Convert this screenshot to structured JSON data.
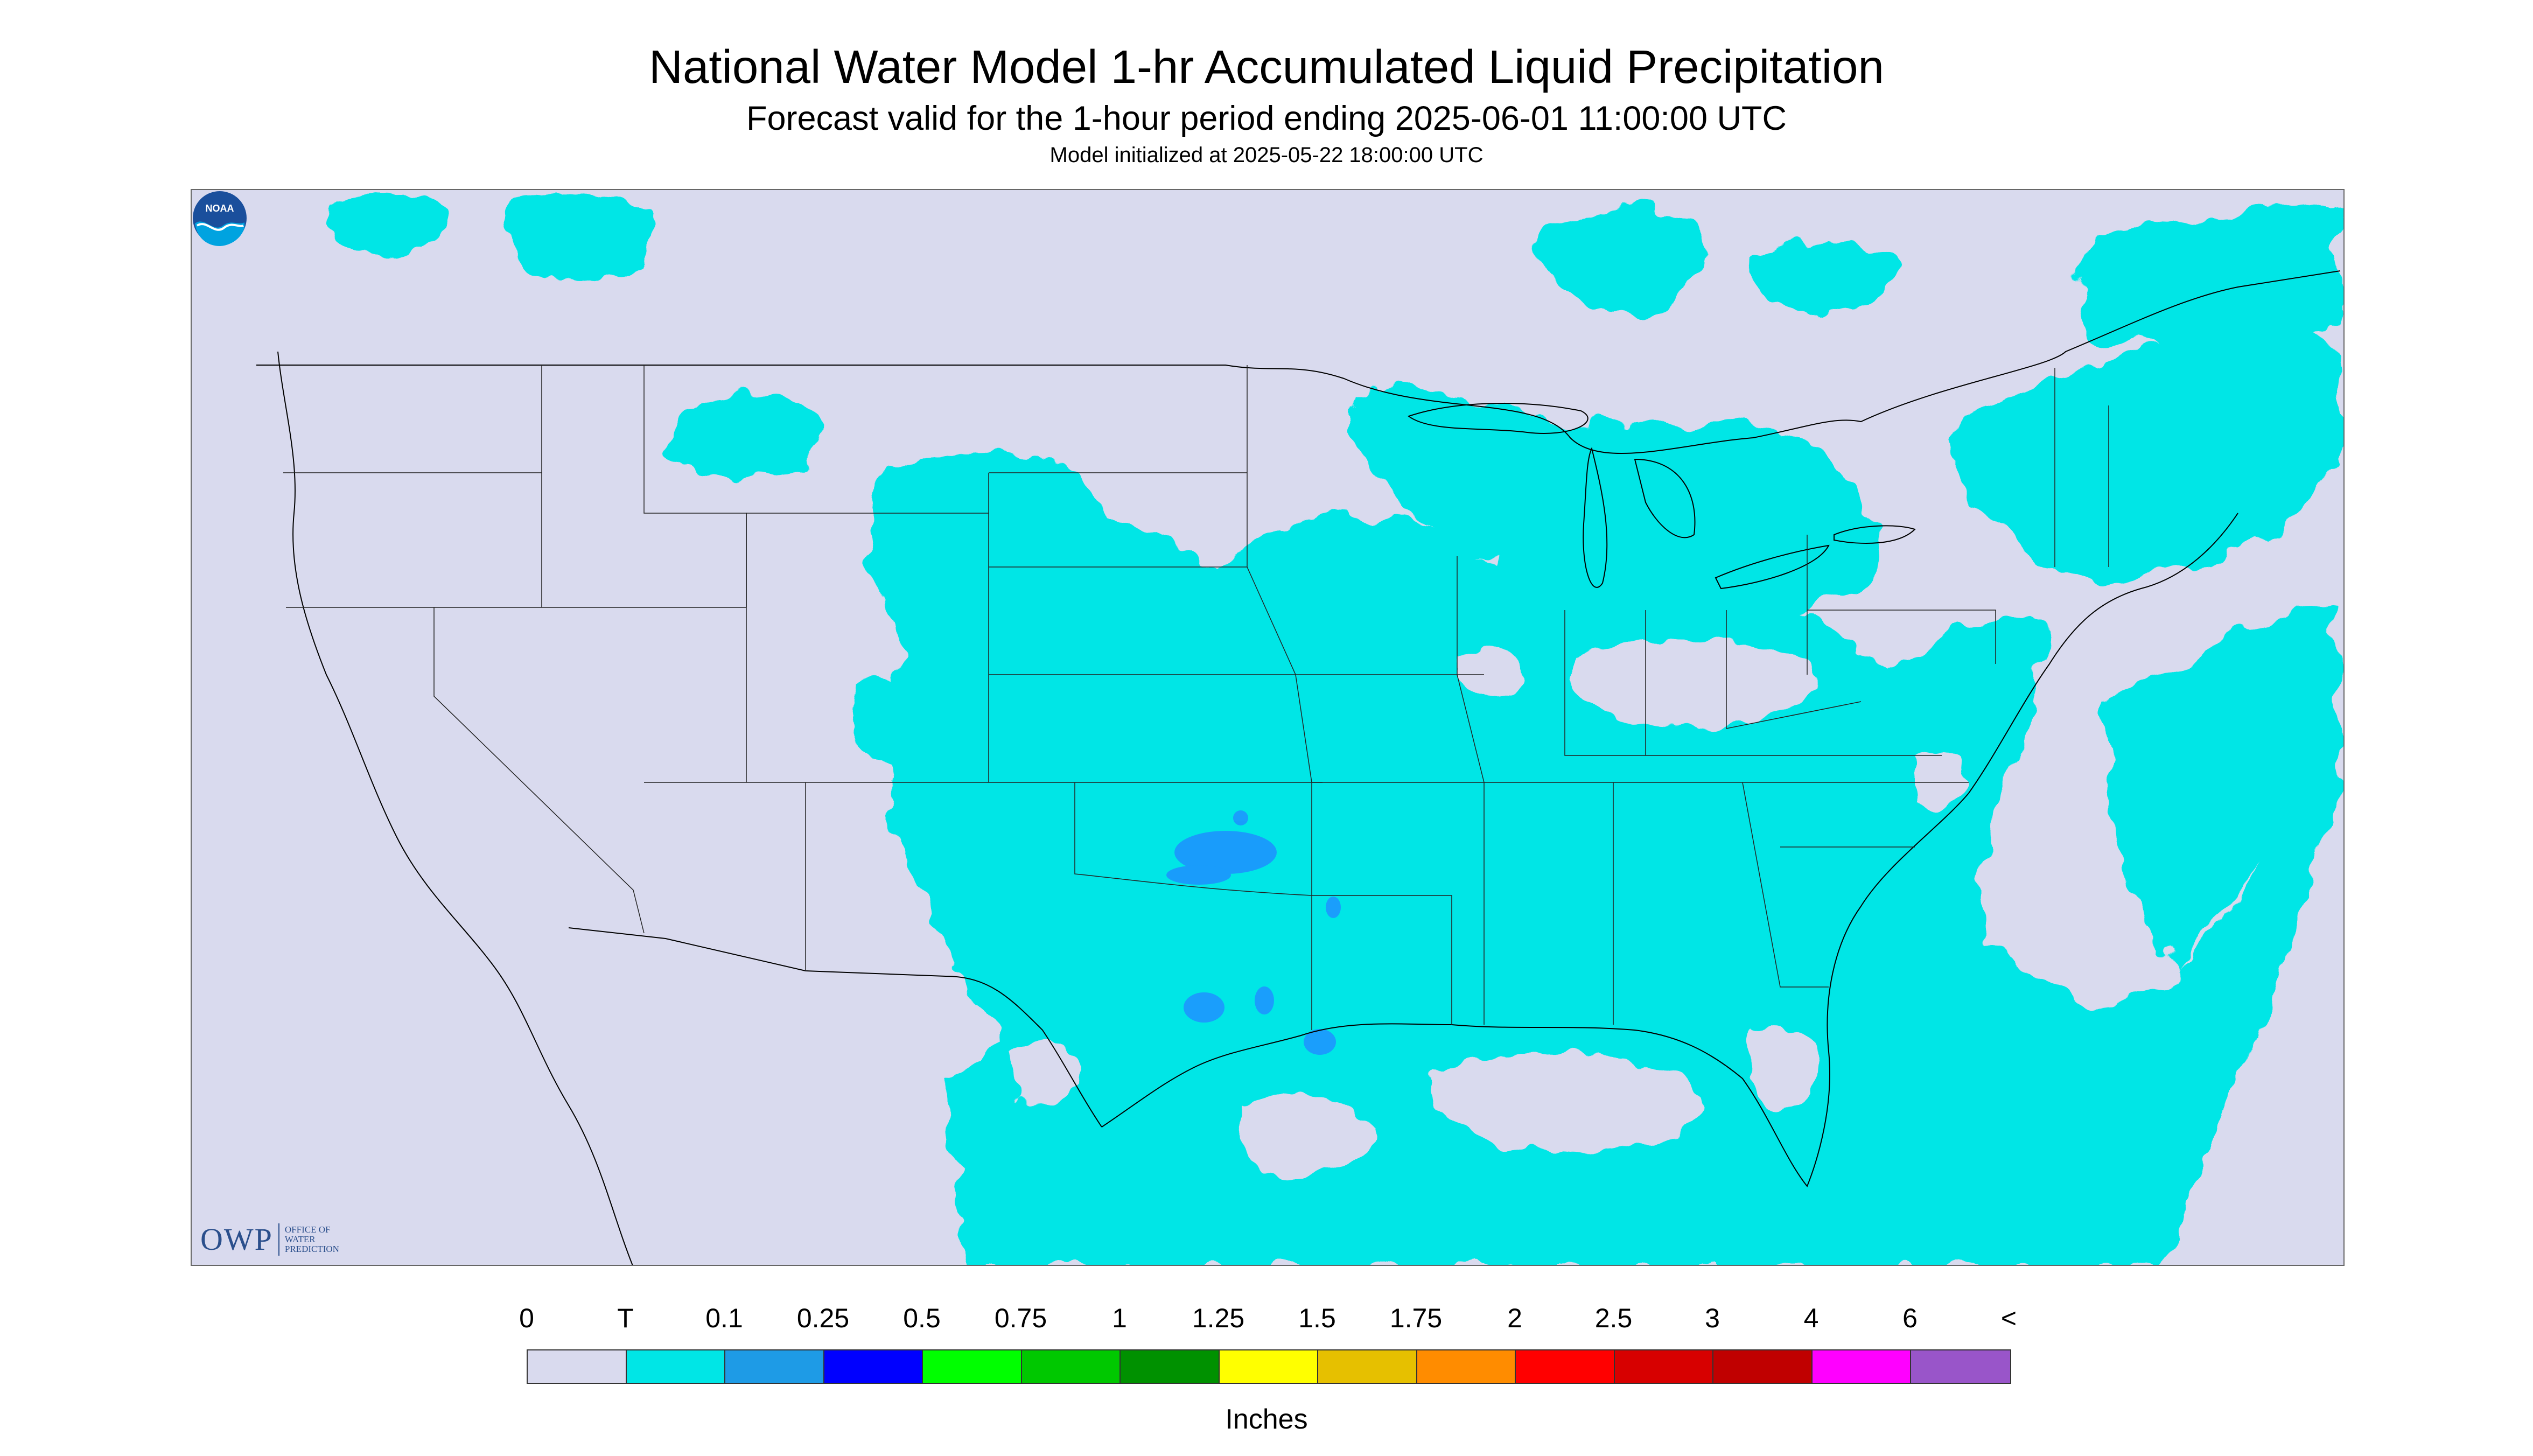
{
  "header": {
    "title": "National Water Model 1-hr Accumulated Liquid Precipitation",
    "subtitle": "Forecast valid for the 1-hour period ending 2025-06-01 11:00:00 UTC",
    "init_line": "Model initialized at 2025-05-22 18:00:00 UTC"
  },
  "map": {
    "background_color": "#d9daee",
    "precip_color": "#00e6e6",
    "heavier_color": "#1e90ff",
    "boundary_color": "#000000",
    "layers": [
      "state-boundaries",
      "coastlines",
      "great-lakes",
      "precipitation-shading"
    ]
  },
  "logos": {
    "owp_mark": "OWP",
    "owp_name": "OFFICE OF WATER PREDICTION",
    "noaa_text": "NOAA"
  },
  "legend": {
    "labels": [
      "0",
      "T",
      "0.1",
      "0.25",
      "0.5",
      "0.75",
      "1",
      "1.25",
      "1.5",
      "1.75",
      "2",
      "2.5",
      "3",
      "4",
      "6",
      "<"
    ],
    "colors": [
      "#d9daee",
      "#00e6e6",
      "#1e9be6",
      "#0000ff",
      "#00ff00",
      "#00c800",
      "#009100",
      "#ffff00",
      "#e6c000",
      "#ff8c00",
      "#ff0000",
      "#d70000",
      "#c00000",
      "#ff00ff",
      "#9955c9"
    ],
    "units": "Inches"
  }
}
